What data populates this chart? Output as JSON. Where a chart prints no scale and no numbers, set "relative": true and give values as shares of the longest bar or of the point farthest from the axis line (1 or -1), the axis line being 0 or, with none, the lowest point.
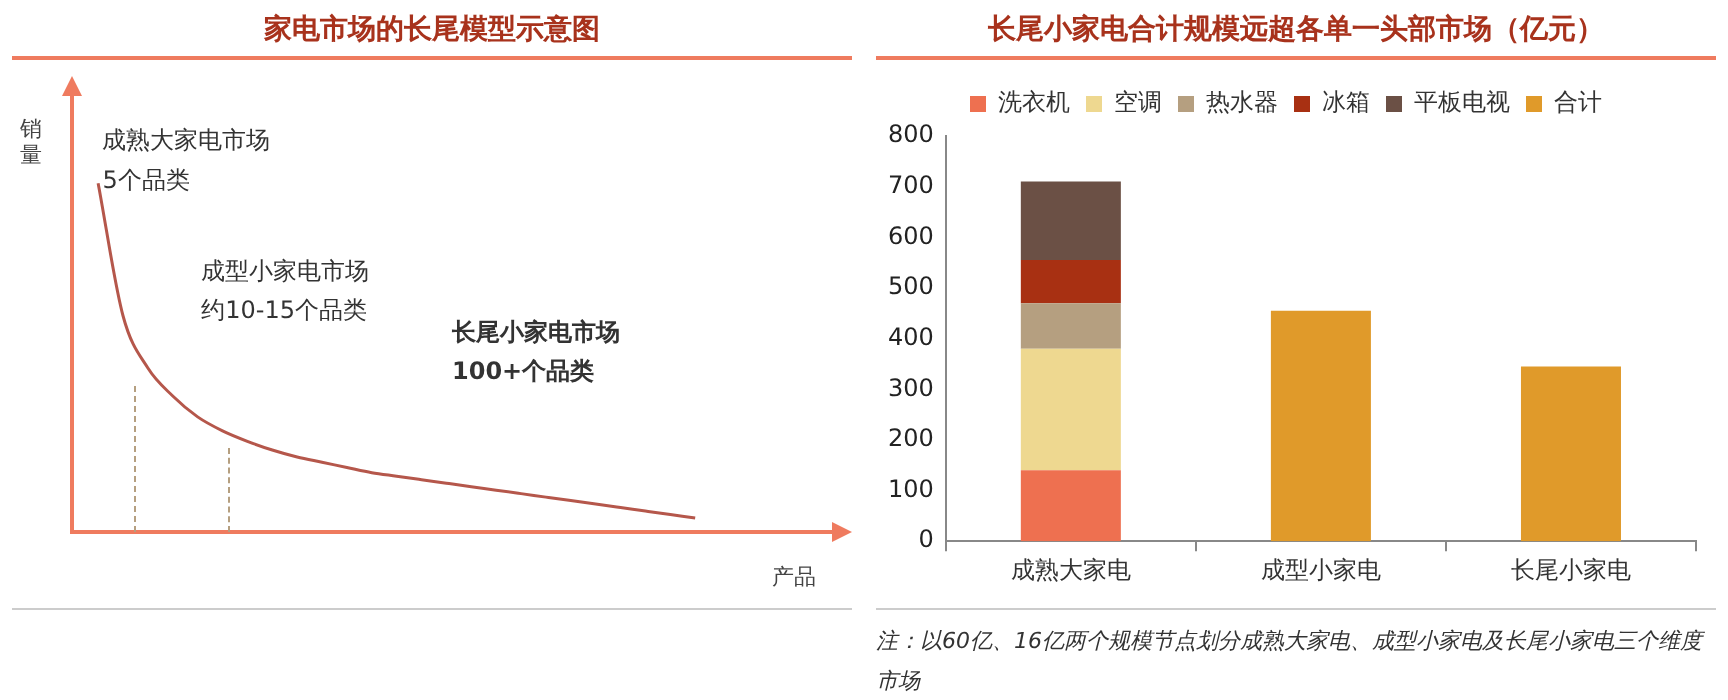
{
  "chart_data": [
    {
      "type": "line",
      "title": "家电市场的长尾模型示意图",
      "xlabel": "产品",
      "ylabel": "销量",
      "relative": true,
      "grid": false,
      "legend": false,
      "marker": "none",
      "line_style": "solid",
      "categories": [
        null,
        null,
        null,
        null,
        null,
        null,
        null,
        null,
        null,
        null,
        null,
        null,
        null,
        null,
        null,
        null,
        null,
        null,
        null,
        null,
        null,
        null,
        null,
        null,
        null
      ],
      "series": [
        {
          "color": "#b5574b",
          "values": [
            1,
            0.62,
            0.47,
            0.39,
            0.33,
            0.29,
            0.26,
            0.235,
            0.215,
            0.2,
            0.185,
            0.17,
            0.16,
            0.15,
            0.14,
            0.13,
            0.12,
            0.11,
            0.1,
            0.09,
            0.08,
            0.07,
            0.06,
            0.05,
            0.04
          ]
        }
      ],
      "annotations": [
        "成熟大家电市场",
        "5个品类",
        "成型小家电市场",
        "约10-15个品类",
        "长尾小家电市场",
        "100+个品类"
      ]
    },
    {
      "type": "bar",
      "title": "长尾小家电合计规模远超各单一头部市场（亿元）",
      "stacked": true,
      "grid": false,
      "legend": "top",
      "categories": [
        "成熟大家电",
        "成型小家电",
        "长尾小家电"
      ],
      "ylim": [
        0,
        800
      ],
      "yticks": [
        0,
        100,
        200,
        300,
        400,
        500,
        600,
        700,
        800
      ],
      "series": [
        {
          "name": "洗衣机",
          "color": "#ee7050",
          "values": [
            140,
            null,
            null
          ]
        },
        {
          "name": "空调",
          "color": "#eed890",
          "values": [
            240,
            null,
            null
          ]
        },
        {
          "name": "热水器",
          "color": "#b59f80",
          "values": [
            90,
            null,
            null
          ]
        },
        {
          "name": "冰箱",
          "color": "#a83012",
          "values": [
            85,
            null,
            null
          ]
        },
        {
          "name": "平板电视",
          "color": "#6b5045",
          "values": [
            155,
            null,
            null
          ]
        },
        {
          "name": "合计",
          "color": "#e09a2a",
          "values": [
            null,
            455,
            345
          ]
        }
      ],
      "annotations": [
        "注：以60亿、16亿两个规模节点划分成熟大家电、成型小家电及长尾小家电三个维度市场"
      ]
    }
  ]
}
